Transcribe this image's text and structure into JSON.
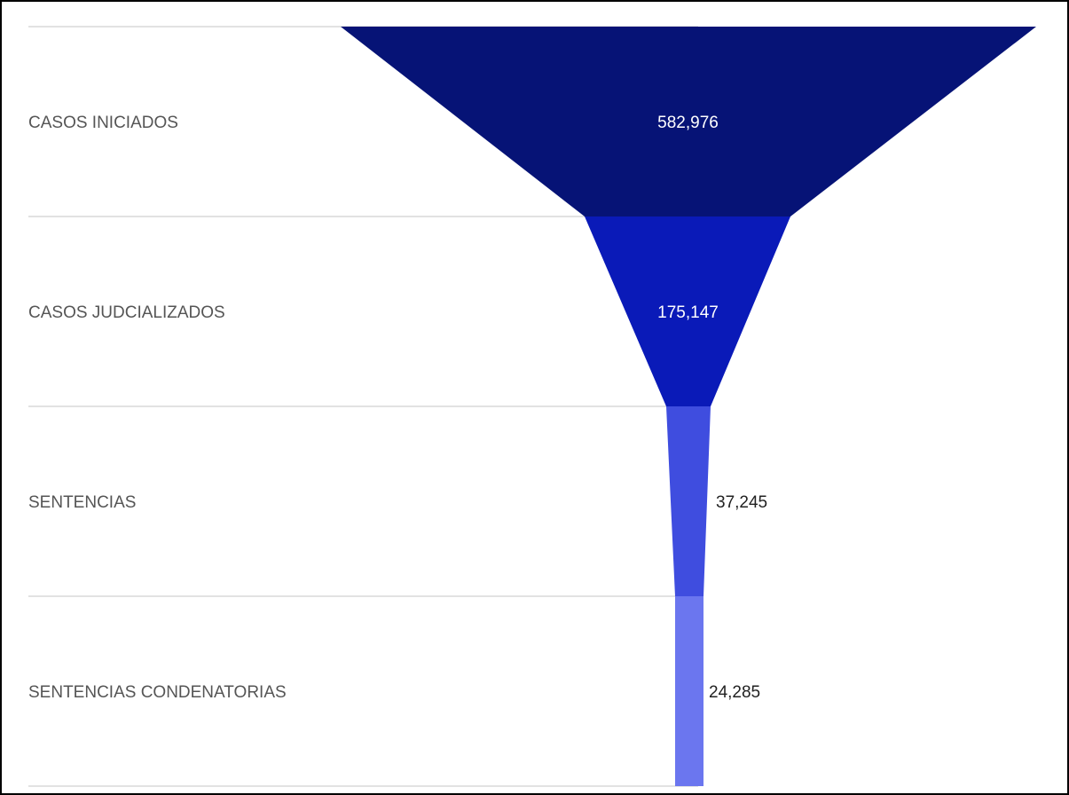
{
  "chart_data": {
    "type": "funnel",
    "title": "",
    "stages": [
      {
        "label": "CASOS INICIADOS",
        "value": 582976,
        "value_text": "582,976",
        "color": "#061376",
        "value_color": "#ffffff",
        "value_inside": true
      },
      {
        "label": "CASOS JUDCIALIZADOS",
        "value": 175147,
        "value_text": "175,147",
        "color": "#0a1ab8",
        "value_color": "#ffffff",
        "value_inside": true
      },
      {
        "label": "SENTENCIAS",
        "value": 37245,
        "value_text": "37,245",
        "color": "#3f4ddf",
        "value_color": "#222222",
        "value_inside": false
      },
      {
        "label": "SENTENCIAS CONDENATORIAS",
        "value": 24285,
        "value_text": "24,285",
        "color": "#6b76ef",
        "value_color": "#222222",
        "value_inside": false
      }
    ],
    "grid": true,
    "gridline_color": "#d9d9d9",
    "label_color": "#555555"
  }
}
